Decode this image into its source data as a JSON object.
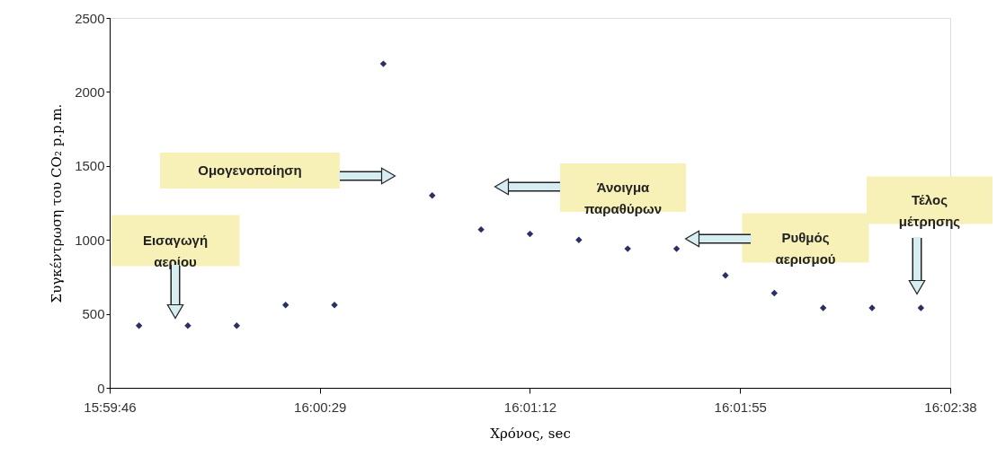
{
  "chart_data": {
    "type": "scatter",
    "marker": "diamond",
    "grid": false,
    "xlabel": "Χρόνος, sec",
    "ylabel": "Συγκέντρωση του CO₂ p.p.m.",
    "x": [
      15.997778,
      16.000556,
      16.003333,
      16.006111,
      16.008889,
      16.011667,
      16.014444,
      16.017222,
      16.02,
      16.022778,
      16.025556,
      16.028333,
      16.031111,
      16.033889,
      16.036667,
      16.039444,
      16.042222
    ],
    "series": [
      {
        "color": "#2b2f66",
        "values": [
          420,
          420,
          420,
          560,
          560,
          2190,
          1300,
          1070,
          1040,
          1000,
          940,
          940,
          760,
          640,
          540,
          540,
          540
        ]
      }
    ],
    "xlim": [
      15.996111,
      16.043889
    ],
    "xticks": [
      {
        "value": 15.996111,
        "label": "15:59:46"
      },
      {
        "value": 16.008056,
        "label": "16:00:29"
      },
      {
        "value": 16.02,
        "label": "16:01:12"
      },
      {
        "value": 16.031944,
        "label": "16:01:55"
      },
      {
        "value": 16.043889,
        "label": "16:02:38"
      }
    ],
    "ylim": [
      0,
      2500
    ],
    "yticks": [
      0,
      500,
      1000,
      1500,
      2000,
      2500
    ],
    "annotations": [
      "Εισαγωγή αερίου",
      "Ομογενοποίηση",
      "Άνοιγμα παραθύρων",
      "Ρυθμός αερισμού",
      "Τέλος μέτρησης"
    ]
  }
}
